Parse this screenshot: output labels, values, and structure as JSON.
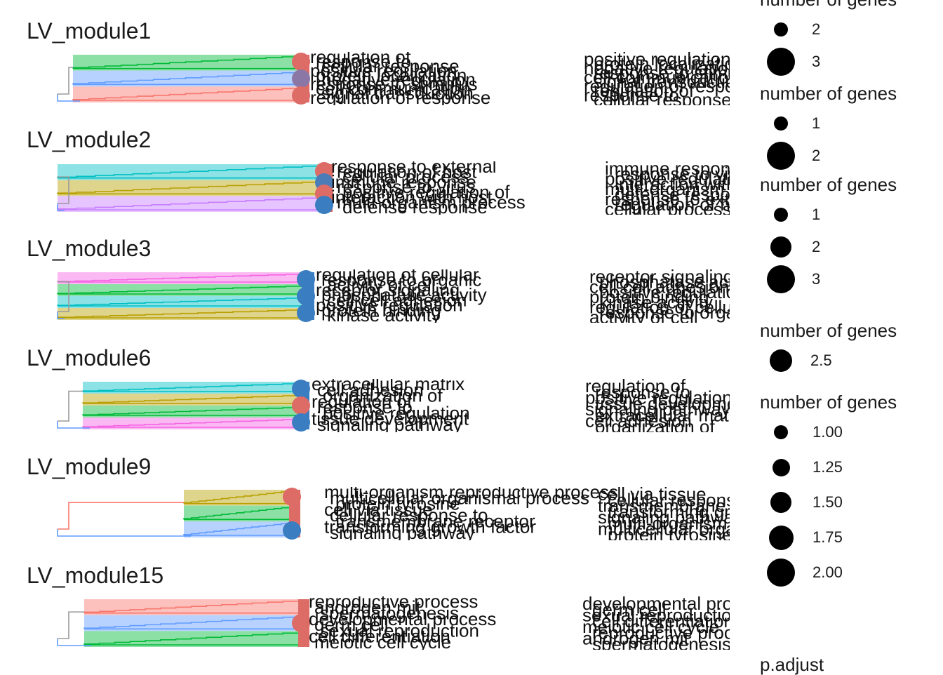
{
  "chart_data": [
    {
      "type": "treeplot",
      "title": "LV_module1",
      "cluster_colors": [
        "#00ba38",
        "#619cff",
        "#f8766d"
      ],
      "dot_colors": [
        "#dd6b66",
        "#8b77a6",
        "#dd6b66"
      ],
      "labels": [
        "regulation of",
        "response to",
        "cellular response",
        "positive regulation",
        "protein localization",
        "negative regulation",
        "response to stimulus",
        "cell communication",
        "signal transduction",
        "regulation of response"
      ]
    },
    {
      "type": "treeplot",
      "title": "LV_module2",
      "cluster_colors": [
        "#00bfc4",
        "#b79f00",
        "#c77cff"
      ],
      "dot_colors": [
        "#dd6b66",
        "#4a7db8",
        "#dd6b66",
        "#3a7dc0"
      ],
      "labels": [
        "response to external",
        "regulation of host",
        "cellular process",
        "immune response",
        "response to virus",
        "positive regulation of",
        "interaction with host",
        "multi-organism process",
        "defense response"
      ]
    },
    {
      "type": "treeplot",
      "title": "LV_module3",
      "cluster_colors": [
        "#f564e3",
        "#00ba38",
        "#00bfc4",
        "#b79f00"
      ],
      "dot_colors": [
        "#3a7dc0",
        "#3a7dc0",
        "#3a7dc0"
      ],
      "labels": [
        "regulation of cellular",
        "response to organic",
        "activity of cell",
        "receptor signaling",
        "phosphatase activity",
        "cell-cell adhesion",
        "positive regulation",
        "protein binding",
        "kinase activity"
      ]
    },
    {
      "type": "treeplot",
      "title": "LV_module6",
      "cluster_colors": [
        "#00bfc4",
        "#b79f00",
        "#00ba38",
        "#f564e3"
      ],
      "dot_colors": [
        "#3a7dc0",
        "#dd6b66",
        "#3a7dc0"
      ],
      "labels": [
        "extracellular matrix",
        "cell adhesion",
        "organization of",
        "regulation of",
        "response to",
        "positive regulation",
        "tissue development",
        "signaling pathway"
      ]
    },
    {
      "type": "treeplot",
      "title": "LV_module9",
      "cluster_colors": [
        "#b79f00",
        "#00ba38",
        "#619cff"
      ],
      "dot_colors": [
        "#dd6b66",
        "#3a7dc0"
      ],
      "labels": [
        "multi-organism reproductive process",
        "multicellular organismal process",
        "protein tyrosine",
        "cell via tissue",
        "cellular response to",
        "transmembrane receptor",
        "transforming growth factor",
        "signaling pathway"
      ]
    },
    {
      "type": "treeplot",
      "title": "LV_module15",
      "cluster_colors": [
        "#f8766d",
        "#619cff",
        "#00ba38"
      ],
      "dot_colors": [
        "#dd6b66"
      ],
      "labels": [
        "reproductive process",
        "androgen mit",
        "spermatogenesis",
        "developmental process",
        "germ cell",
        "sexual reproduction",
        "cell differentiation",
        "meiotic cell cycle"
      ]
    }
  ],
  "legend": {
    "groups": [
      {
        "title": "number of genes",
        "items": [
          {
            "label": "2",
            "size": 2
          },
          {
            "label": "3",
            "size": 3
          }
        ]
      },
      {
        "title": "number of genes",
        "items": [
          {
            "label": "1",
            "size": 1
          },
          {
            "label": "2",
            "size": 2
          }
        ]
      },
      {
        "title": "number of genes",
        "items": [
          {
            "label": "1",
            "size": 1
          },
          {
            "label": "2",
            "size": 2
          },
          {
            "label": "3",
            "size": 3
          }
        ]
      },
      {
        "title": "number of genes",
        "items": [
          {
            "label": "2.5",
            "size": 2.5
          }
        ]
      },
      {
        "title": "number of genes",
        "items": [
          {
            "label": "1.00",
            "size": 1.0
          },
          {
            "label": "1.25",
            "size": 1.25
          },
          {
            "label": "1.50",
            "size": 1.5
          },
          {
            "label": "1.75",
            "size": 1.75
          },
          {
            "label": "2.00",
            "size": 2.0
          }
        ]
      }
    ],
    "padjust_title": "p.adjust"
  }
}
